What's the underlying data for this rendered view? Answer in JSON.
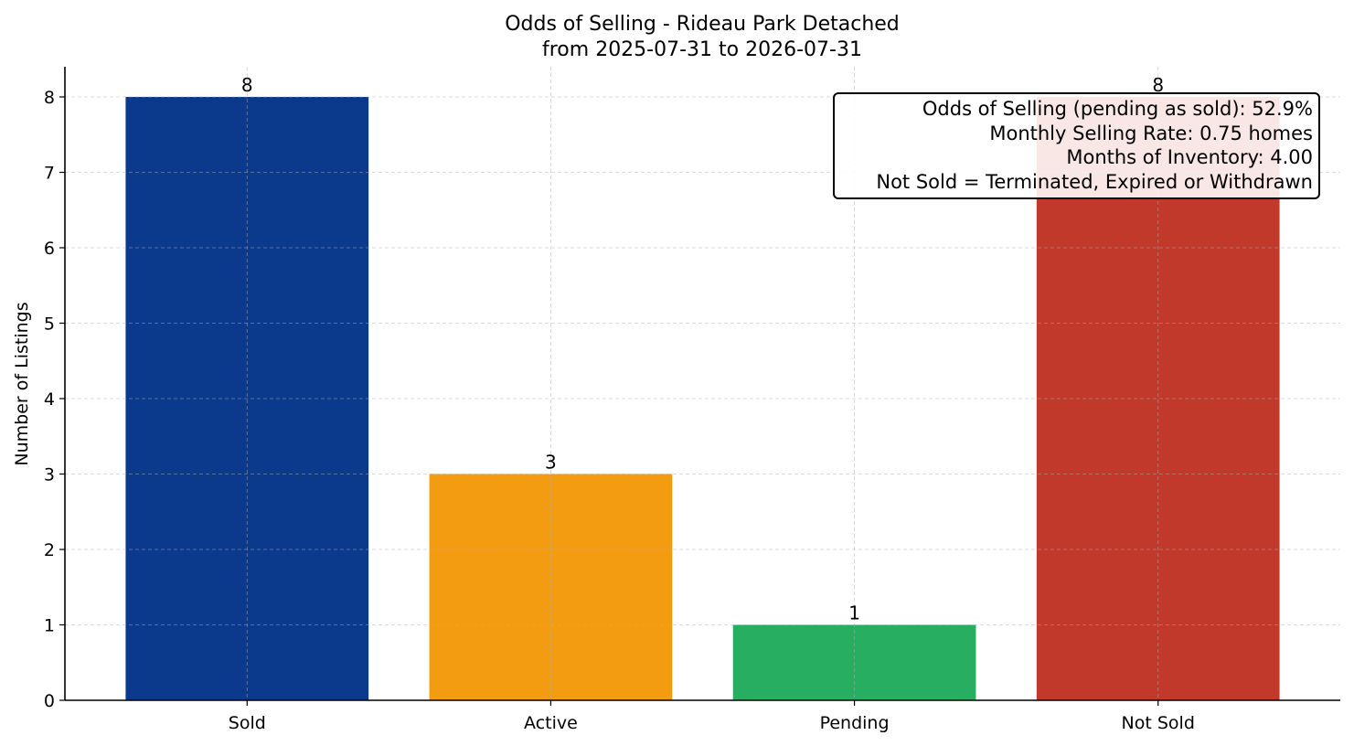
{
  "chart_data": {
    "type": "bar",
    "title": "Odds of Selling - Rideau Park Detached",
    "subtitle": "from 2025-07-31 to 2026-07-31",
    "xlabel": "",
    "ylabel": "Number of Listings",
    "categories": [
      "Sold",
      "Active",
      "Pending",
      "Not Sold"
    ],
    "values": [
      8,
      3,
      1,
      8
    ],
    "colors": [
      "#0b3a8c",
      "#f39c12",
      "#27ae60",
      "#c0392b"
    ],
    "ylim": [
      0,
      8.4
    ],
    "yticks": [
      0,
      1,
      2,
      3,
      4,
      5,
      6,
      7,
      8
    ],
    "grid": true,
    "annotations": [
      "Odds of Selling (pending as sold): 52.9%",
      "Monthly Selling Rate: 0.75 homes",
      "Months of Inventory: 4.00",
      "Not Sold = Terminated, Expired or Withdrawn"
    ],
    "annotation_placement": "top-right"
  }
}
